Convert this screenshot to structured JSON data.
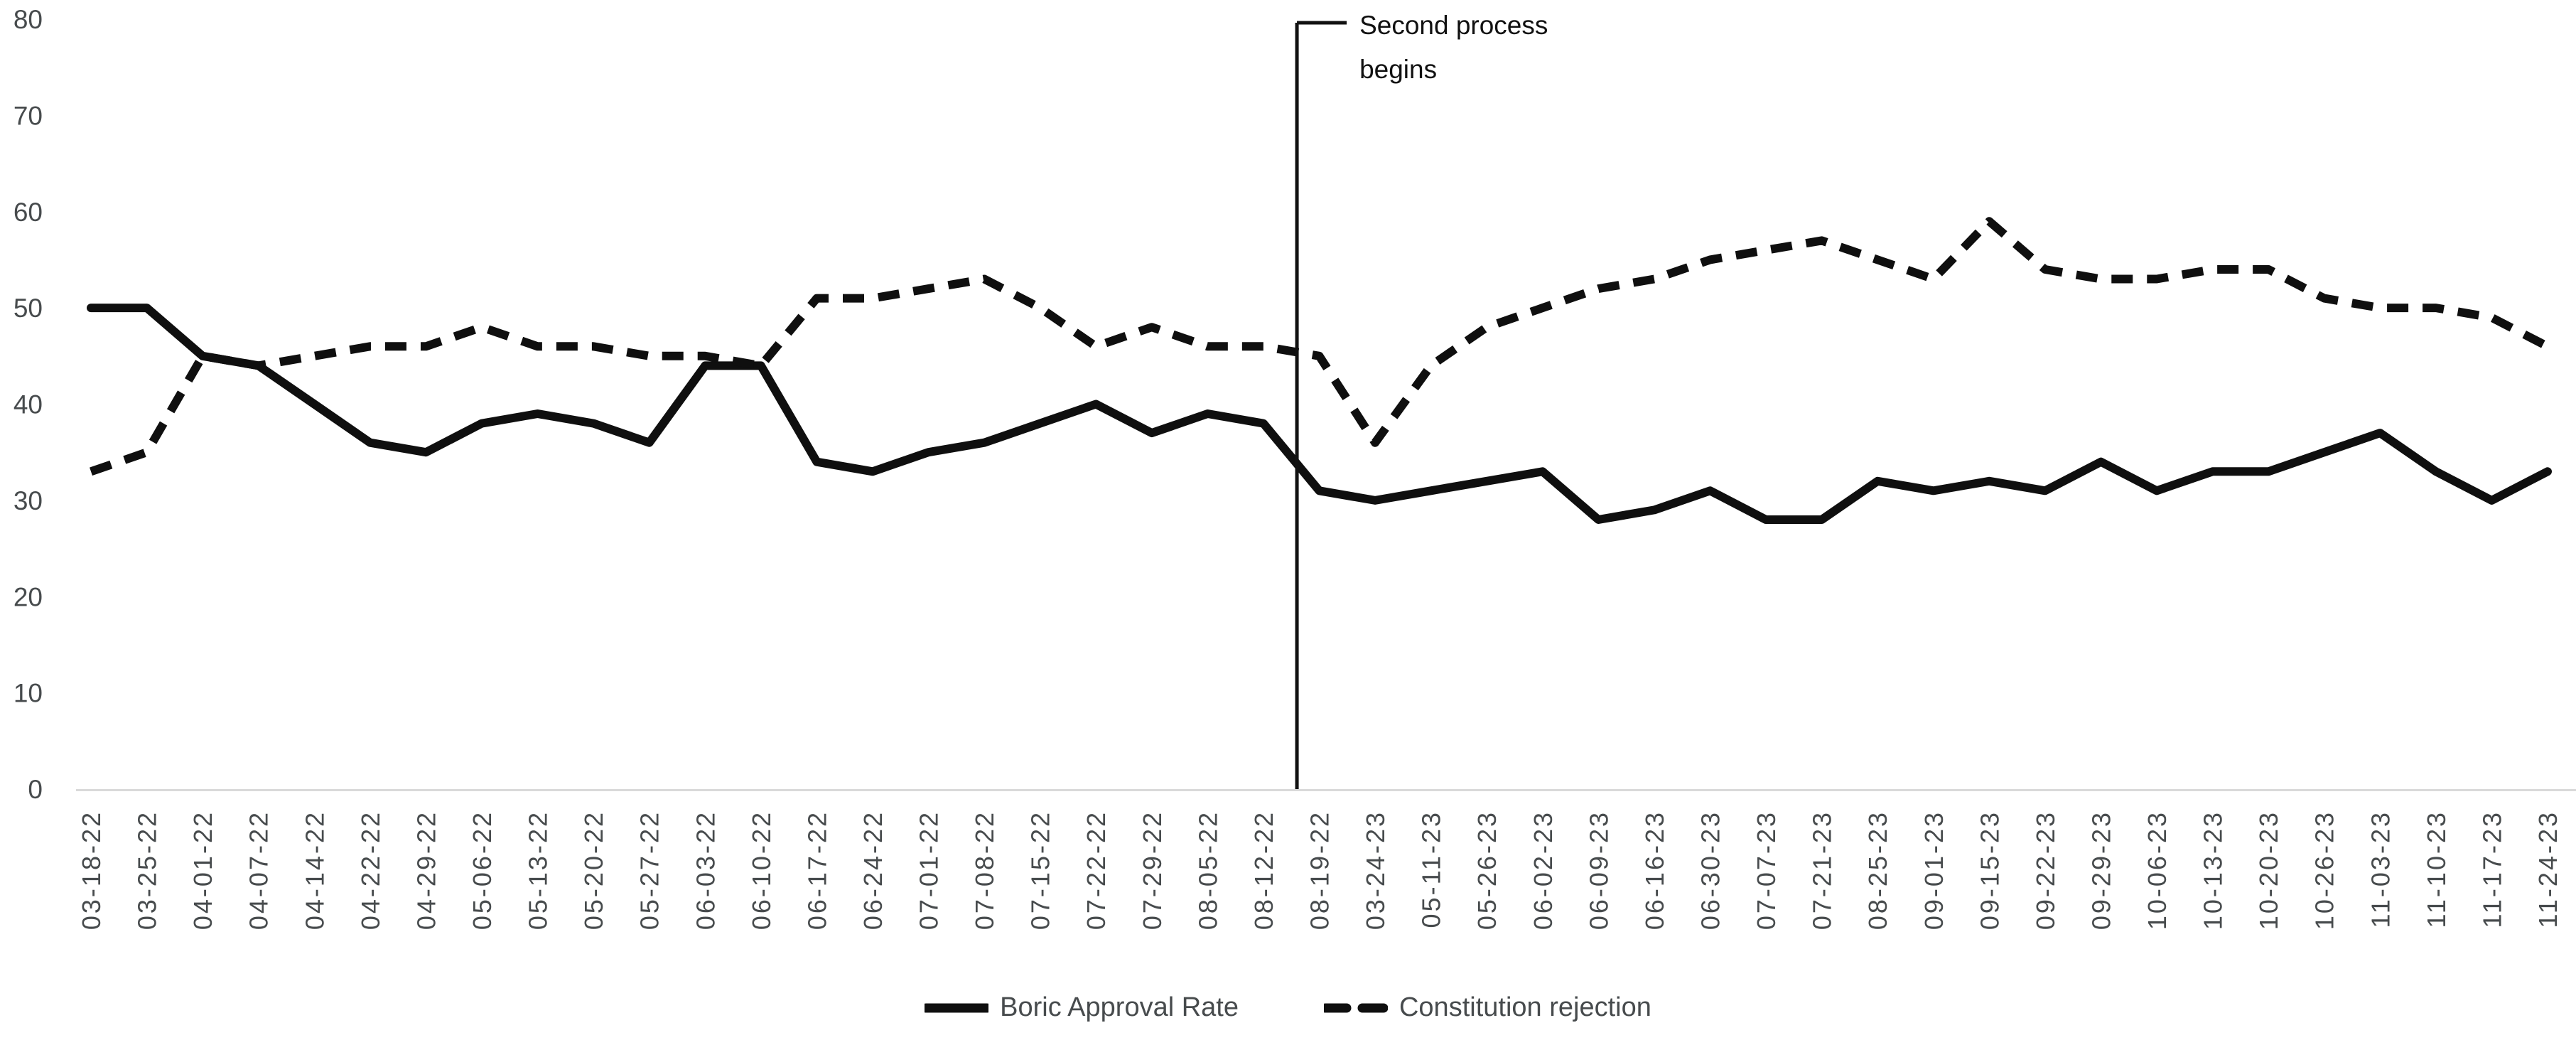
{
  "chart_data": {
    "type": "line",
    "title": "",
    "xlabel": "",
    "ylabel": "",
    "ylim": [
      0,
      80
    ],
    "y_ticks": [
      0,
      10,
      20,
      30,
      40,
      50,
      60,
      70,
      80
    ],
    "grid": false,
    "legend_position": "bottom",
    "categories": [
      "03-18-22",
      "03-25-22",
      "04-01-22",
      "04-07-22",
      "04-14-22",
      "04-22-22",
      "04-29-22",
      "05-06-22",
      "05-13-22",
      "05-20-22",
      "05-27-22",
      "06-03-22",
      "06-10-22",
      "06-17-22",
      "06-24-22",
      "07-01-22",
      "07-08-22",
      "07-15-22",
      "07-22-22",
      "07-29-22",
      "08-05-22",
      "08-12-22",
      "08-19-22",
      "03-24-23",
      "05-11-23",
      "05-26-23",
      "06-02-23",
      "06-09-23",
      "06-16-23",
      "06-30-23",
      "07-07-23",
      "07-21-23",
      "08-25-23",
      "09-01-23",
      "09-15-23",
      "09-22-23",
      "09-29-23",
      "10-06-23",
      "10-13-23",
      "10-20-23",
      "10-26-23",
      "11-03-23",
      "11-10-23",
      "11-17-23",
      "11-24-23"
    ],
    "series": [
      {
        "name": "Boric Approval Rate",
        "style": "solid",
        "values": [
          50,
          50,
          45,
          44,
          40,
          36,
          35,
          38,
          39,
          38,
          36,
          44,
          44,
          34,
          33,
          35,
          36,
          38,
          40,
          37,
          39,
          38,
          31,
          30,
          31,
          32,
          33,
          28,
          29,
          31,
          28,
          28,
          32,
          31,
          32,
          31,
          34,
          31,
          33,
          33,
          35,
          37,
          33,
          30,
          33
        ]
      },
      {
        "name": "Constitution rejection",
        "style": "dashed",
        "values": [
          33,
          35,
          45,
          44,
          45,
          46,
          46,
          48,
          46,
          46,
          45,
          45,
          44,
          51,
          51,
          52,
          53,
          50,
          46,
          48,
          46,
          46,
          45,
          36,
          44,
          48,
          50,
          52,
          53,
          55,
          56,
          57,
          55,
          53,
          59,
          54,
          53,
          53,
          54,
          54,
          51,
          50,
          50,
          49,
          46
        ]
      }
    ],
    "annotation": {
      "lines": [
        "Second process",
        "begins"
      ],
      "x_index": 21.6
    }
  },
  "colors": {
    "line": "#0f0f0f",
    "annotation_line": "#111111",
    "axis_line": "#d9d9d9",
    "tick_label": "#474b4d",
    "legend_label": "#474b4d",
    "background": "#ffffff"
  }
}
